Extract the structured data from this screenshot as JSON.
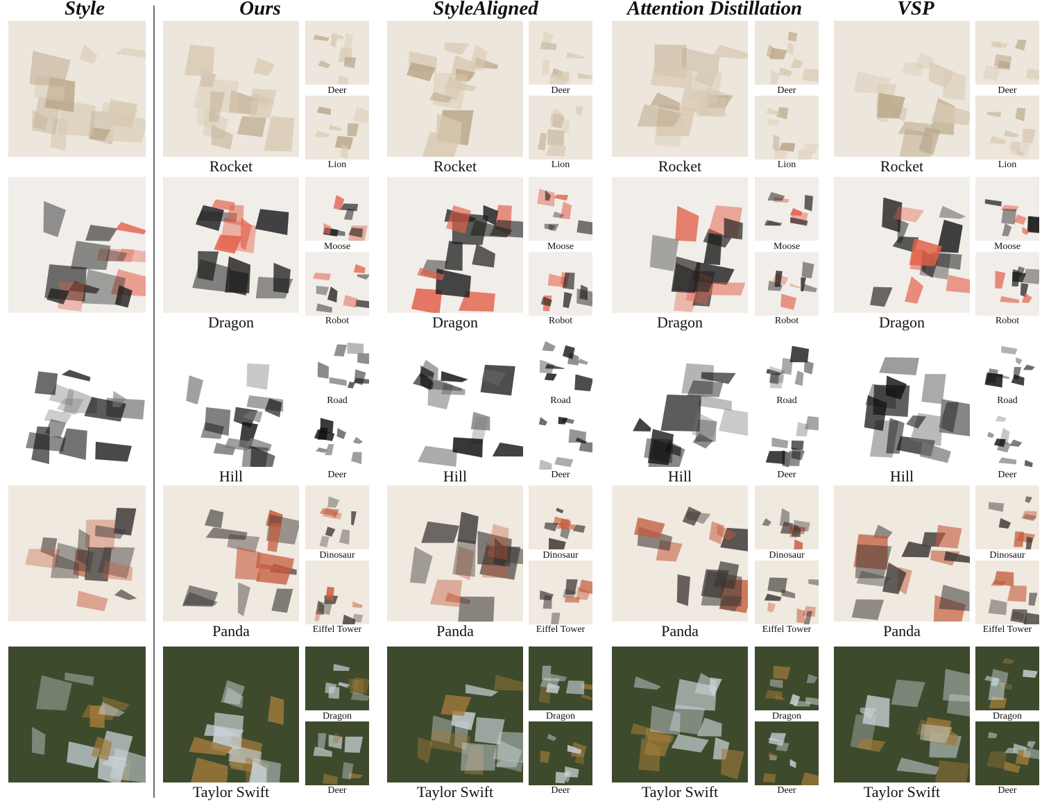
{
  "headers": {
    "style": "Style",
    "ours": "Ours",
    "stylealigned": "StyleAligned",
    "attention": "Attention Distillation",
    "vsp": "VSP"
  },
  "rows": [
    {
      "style_icon": "paper-origami-woman-image",
      "main": [
        "Rocket",
        "Rocket",
        "Rocket",
        "Rocket"
      ],
      "small_top": [
        "Deer",
        "Deer",
        "Deer",
        "Deer"
      ],
      "small_bottom": [
        "Lion",
        "Lion",
        "Lion",
        "Lion"
      ],
      "palette": {
        "bg": "#ece6dc",
        "fg": "#d8c9b2",
        "accent": "#b9a587"
      }
    },
    {
      "style_icon": "paper-collage-girl-image",
      "main": [
        "Dragon",
        "Dragon",
        "Dragon",
        "Dragon"
      ],
      "small_top": [
        "Moose",
        "Moose",
        "Moose",
        "Moose"
      ],
      "small_bottom": [
        "Robot",
        "Robot",
        "Robot",
        "Robot"
      ],
      "palette": {
        "bg": "#f1eeea",
        "fg": "#1f1f1f",
        "accent": "#e2604a"
      }
    },
    {
      "style_icon": "ink-sketch-landscape-image",
      "main": [
        "Hill",
        "Hill",
        "Hill",
        "Hill"
      ],
      "small_top": [
        "Road",
        "Road",
        "Road",
        "Road"
      ],
      "small_bottom": [
        "Deer",
        "Deer",
        "Deer",
        "Deer"
      ],
      "palette": {
        "bg": "#ffffff",
        "fg": "#111111",
        "accent": "#777777"
      }
    },
    {
      "style_icon": "watercolor-horse-image",
      "main": [
        "Panda",
        "Panda",
        "Panda",
        "Panda"
      ],
      "small_top": [
        "Dinosaur",
        "Dinosaur",
        "Dinosaur",
        "Dinosaur"
      ],
      "small_bottom": [
        "Eiffel Tower",
        "Eiffel Tower",
        "Eiffel Tower",
        "Eiffel Tower"
      ],
      "palette": {
        "bg": "#efe9df",
        "fg": "#3a3533",
        "accent": "#c45a3c"
      }
    },
    {
      "style_icon": "glass-bear-figurine-image",
      "main": [
        "Taylor Swift",
        "Taylor Swift",
        "Taylor Swift",
        "Taylor Swift"
      ],
      "small_top": [
        "Dragon",
        "Dragon",
        "Dragon",
        "Dragon"
      ],
      "small_bottom": [
        "Deer",
        "Deer",
        "Deer",
        "Deer"
      ],
      "palette": {
        "bg": "#3d4a2c",
        "fg": "#c9d3d8",
        "accent": "#a07a3a"
      }
    }
  ]
}
